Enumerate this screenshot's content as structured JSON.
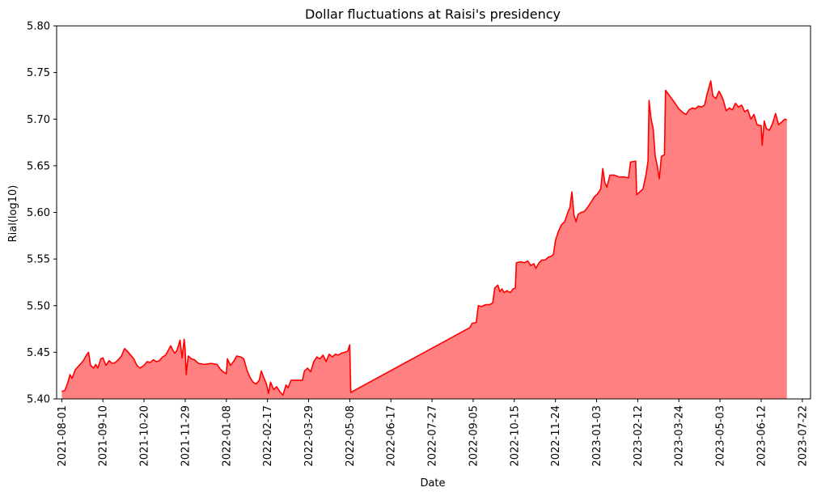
{
  "chart_data": {
    "type": "area",
    "title": "Dollar fluctuations at Raisi's presidency",
    "xlabel": "Date",
    "ylabel": "Rial(log10)",
    "xlim": [
      "2021-07-27",
      "2023-07-30"
    ],
    "ylim": [
      5.4,
      5.8
    ],
    "grid": false,
    "colors": {
      "line": "#ff0000",
      "fill": "#ff8080"
    },
    "x_ticks": [
      "2021-08-01",
      "2021-09-10",
      "2021-10-20",
      "2021-11-29",
      "2022-01-08",
      "2022-02-17",
      "2022-03-29",
      "2022-05-08",
      "2022-06-17",
      "2022-07-27",
      "2022-09-05",
      "2022-10-15",
      "2022-11-24",
      "2023-01-03",
      "2023-02-12",
      "2023-03-24",
      "2023-05-03",
      "2023-06-12",
      "2023-07-22"
    ],
    "y_ticks": [
      "5.40",
      "5.45",
      "5.50",
      "5.55",
      "5.60",
      "5.65",
      "5.70",
      "5.75",
      "5.80"
    ],
    "series": [
      {
        "points": [
          [
            "2021-08-01",
            5.408
          ],
          [
            "2021-08-04",
            5.409
          ],
          [
            "2021-08-07",
            5.418
          ],
          [
            "2021-08-09",
            5.426
          ],
          [
            "2021-08-11",
            5.422
          ],
          [
            "2021-08-14",
            5.431
          ],
          [
            "2021-08-18",
            5.436
          ],
          [
            "2021-08-22",
            5.441
          ],
          [
            "2021-08-25",
            5.447
          ],
          [
            "2021-08-27",
            5.45
          ],
          [
            "2021-08-29",
            5.436
          ],
          [
            "2021-09-01",
            5.433
          ],
          [
            "2021-09-03",
            5.437
          ],
          [
            "2021-09-05",
            5.433
          ],
          [
            "2021-09-08",
            5.443
          ],
          [
            "2021-09-10",
            5.444
          ],
          [
            "2021-09-13",
            5.436
          ],
          [
            "2021-09-16",
            5.441
          ],
          [
            "2021-09-19",
            5.438
          ],
          [
            "2021-09-22",
            5.439
          ],
          [
            "2021-09-25",
            5.442
          ],
          [
            "2021-09-28",
            5.446
          ],
          [
            "2021-10-01",
            5.454
          ],
          [
            "2021-10-03",
            5.452
          ],
          [
            "2021-10-07",
            5.447
          ],
          [
            "2021-10-10",
            5.443
          ],
          [
            "2021-10-13",
            5.436
          ],
          [
            "2021-10-16",
            5.433
          ],
          [
            "2021-10-20",
            5.436
          ],
          [
            "2021-10-23",
            5.44
          ],
          [
            "2021-10-26",
            5.439
          ],
          [
            "2021-10-29",
            5.442
          ],
          [
            "2021-11-01",
            5.44
          ],
          [
            "2021-11-04",
            5.441
          ],
          [
            "2021-11-07",
            5.445
          ],
          [
            "2021-11-10",
            5.447
          ],
          [
            "2021-11-13",
            5.453
          ],
          [
            "2021-11-15",
            5.457
          ],
          [
            "2021-11-17",
            5.452
          ],
          [
            "2021-11-19",
            5.449
          ],
          [
            "2021-11-21",
            5.452
          ],
          [
            "2021-11-24",
            5.463
          ],
          [
            "2021-11-26",
            5.444
          ],
          [
            "2021-11-28",
            5.464
          ],
          [
            "2021-11-29",
            5.452
          ],
          [
            "2021-11-30",
            5.426
          ],
          [
            "2021-12-01",
            5.437
          ],
          [
            "2021-12-02",
            5.446
          ],
          [
            "2021-12-05",
            5.443
          ],
          [
            "2021-12-08",
            5.442
          ],
          [
            "2021-12-12",
            5.438
          ],
          [
            "2021-12-18",
            5.437
          ],
          [
            "2021-12-24",
            5.438
          ],
          [
            "2021-12-30",
            5.437
          ],
          [
            "2022-01-02",
            5.432
          ],
          [
            "2022-01-05",
            5.429
          ],
          [
            "2022-01-08",
            5.427
          ],
          [
            "2022-01-09",
            5.443
          ],
          [
            "2022-01-12",
            5.436
          ],
          [
            "2022-01-15",
            5.44
          ],
          [
            "2022-01-18",
            5.446
          ],
          [
            "2022-01-22",
            5.445
          ],
          [
            "2022-01-25",
            5.443
          ],
          [
            "2022-01-28",
            5.431
          ],
          [
            "2022-01-31",
            5.423
          ],
          [
            "2022-02-03",
            5.418
          ],
          [
            "2022-02-06",
            5.416
          ],
          [
            "2022-02-09",
            5.42
          ],
          [
            "2022-02-11",
            5.43
          ],
          [
            "2022-02-13",
            5.424
          ],
          [
            "2022-02-16",
            5.416
          ],
          [
            "2022-02-18",
            5.406
          ],
          [
            "2022-02-20",
            5.418
          ],
          [
            "2022-02-23",
            5.41
          ],
          [
            "2022-02-26",
            5.413
          ],
          [
            "2022-03-01",
            5.408
          ],
          [
            "2022-03-04",
            5.404
          ],
          [
            "2022-03-07",
            5.415
          ],
          [
            "2022-03-09",
            5.412
          ],
          [
            "2022-03-12",
            5.42
          ],
          [
            "2022-03-17",
            5.42
          ],
          [
            "2022-03-23",
            5.42
          ],
          [
            "2022-03-25",
            5.43
          ],
          [
            "2022-03-28",
            5.433
          ],
          [
            "2022-03-31",
            5.429
          ],
          [
            "2022-04-03",
            5.44
          ],
          [
            "2022-04-06",
            5.445
          ],
          [
            "2022-04-09",
            5.443
          ],
          [
            "2022-04-12",
            5.447
          ],
          [
            "2022-04-15",
            5.44
          ],
          [
            "2022-04-18",
            5.448
          ],
          [
            "2022-04-21",
            5.445
          ],
          [
            "2022-04-24",
            5.448
          ],
          [
            "2022-04-27",
            5.447
          ],
          [
            "2022-04-30",
            5.449
          ],
          [
            "2022-05-03",
            5.45
          ],
          [
            "2022-05-06",
            5.451
          ],
          [
            "2022-05-08",
            5.458
          ],
          [
            "2022-05-09",
            5.407
          ],
          [
            "2022-09-01",
            5.476
          ],
          [
            "2022-09-02",
            5.477
          ],
          [
            "2022-09-04",
            5.481
          ],
          [
            "2022-09-08",
            5.482
          ],
          [
            "2022-09-10",
            5.5
          ],
          [
            "2022-09-13",
            5.499
          ],
          [
            "2022-09-17",
            5.501
          ],
          [
            "2022-09-21",
            5.501
          ],
          [
            "2022-09-24",
            5.503
          ],
          [
            "2022-09-26",
            5.519
          ],
          [
            "2022-09-29",
            5.522
          ],
          [
            "2022-10-01",
            5.515
          ],
          [
            "2022-10-03",
            5.518
          ],
          [
            "2022-10-05",
            5.514
          ],
          [
            "2022-10-08",
            5.516
          ],
          [
            "2022-10-11",
            5.514
          ],
          [
            "2022-10-14",
            5.518
          ],
          [
            "2022-10-16",
            5.519
          ],
          [
            "2022-10-17",
            5.546
          ],
          [
            "2022-10-21",
            5.547
          ],
          [
            "2022-10-25",
            5.546
          ],
          [
            "2022-10-28",
            5.548
          ],
          [
            "2022-10-31",
            5.543
          ],
          [
            "2022-11-03",
            5.545
          ],
          [
            "2022-11-05",
            5.54
          ],
          [
            "2022-11-08",
            5.546
          ],
          [
            "2022-11-11",
            5.549
          ],
          [
            "2022-11-14",
            5.549
          ],
          [
            "2022-11-17",
            5.552
          ],
          [
            "2022-11-20",
            5.553
          ],
          [
            "2022-11-22",
            5.555
          ],
          [
            "2022-11-24",
            5.57
          ],
          [
            "2022-11-27",
            5.58
          ],
          [
            "2022-11-30",
            5.587
          ],
          [
            "2022-12-03",
            5.59
          ],
          [
            "2022-12-06",
            5.6
          ],
          [
            "2022-12-08",
            5.605
          ],
          [
            "2022-12-10",
            5.622
          ],
          [
            "2022-12-12",
            5.597
          ],
          [
            "2022-12-14",
            5.59
          ],
          [
            "2022-12-16",
            5.598
          ],
          [
            "2022-12-19",
            5.6
          ],
          [
            "2022-12-22",
            5.601
          ],
          [
            "2022-12-25",
            5.605
          ],
          [
            "2022-12-28",
            5.61
          ],
          [
            "2023-01-01",
            5.617
          ],
          [
            "2023-01-04",
            5.62
          ],
          [
            "2023-01-07",
            5.625
          ],
          [
            "2023-01-09",
            5.647
          ],
          [
            "2023-01-11",
            5.632
          ],
          [
            "2023-01-13",
            5.627
          ],
          [
            "2023-01-16",
            5.64
          ],
          [
            "2023-01-20",
            5.64
          ],
          [
            "2023-01-25",
            5.638
          ],
          [
            "2023-01-30",
            5.638
          ],
          [
            "2023-02-03",
            5.637
          ],
          [
            "2023-02-05",
            5.654
          ],
          [
            "2023-02-10",
            5.655
          ],
          [
            "2023-02-11",
            5.619
          ],
          [
            "2023-02-14",
            5.622
          ],
          [
            "2023-02-17",
            5.625
          ],
          [
            "2023-02-20",
            5.64
          ],
          [
            "2023-02-22",
            5.655
          ],
          [
            "2023-02-23",
            5.72
          ],
          [
            "2023-02-25",
            5.7
          ],
          [
            "2023-02-27",
            5.69
          ],
          [
            "2023-03-01",
            5.66
          ],
          [
            "2023-03-03",
            5.65
          ],
          [
            "2023-03-05",
            5.636
          ],
          [
            "2023-03-07",
            5.66
          ],
          [
            "2023-03-10",
            5.662
          ],
          [
            "2023-03-11",
            5.731
          ],
          [
            "2023-03-15",
            5.725
          ],
          [
            "2023-03-19",
            5.719
          ],
          [
            "2023-03-24",
            5.711
          ],
          [
            "2023-03-26",
            5.709
          ],
          [
            "2023-03-28",
            5.707
          ],
          [
            "2023-03-31",
            5.705
          ],
          [
            "2023-04-03",
            5.71
          ],
          [
            "2023-04-06",
            5.712
          ],
          [
            "2023-04-09",
            5.711
          ],
          [
            "2023-04-12",
            5.714
          ],
          [
            "2023-04-15",
            5.713
          ],
          [
            "2023-04-18",
            5.715
          ],
          [
            "2023-04-20",
            5.725
          ],
          [
            "2023-04-22",
            5.733
          ],
          [
            "2023-04-24",
            5.741
          ],
          [
            "2023-04-26",
            5.725
          ],
          [
            "2023-04-29",
            5.722
          ],
          [
            "2023-05-02",
            5.73
          ],
          [
            "2023-05-04",
            5.726
          ],
          [
            "2023-05-06",
            5.721
          ],
          [
            "2023-05-09",
            5.709
          ],
          [
            "2023-05-12",
            5.712
          ],
          [
            "2023-05-15",
            5.71
          ],
          [
            "2023-05-18",
            5.717
          ],
          [
            "2023-05-21",
            5.713
          ],
          [
            "2023-05-24",
            5.715
          ],
          [
            "2023-05-27",
            5.708
          ],
          [
            "2023-05-30",
            5.71
          ],
          [
            "2023-06-02",
            5.7
          ],
          [
            "2023-06-05",
            5.705
          ],
          [
            "2023-06-08",
            5.694
          ],
          [
            "2023-06-12",
            5.693
          ],
          [
            "2023-06-13",
            5.672
          ],
          [
            "2023-06-15",
            5.698
          ],
          [
            "2023-06-17",
            5.69
          ],
          [
            "2023-06-20",
            5.688
          ],
          [
            "2023-06-23",
            5.695
          ],
          [
            "2023-06-26",
            5.706
          ],
          [
            "2023-06-29",
            5.694
          ],
          [
            "2023-07-02",
            5.697
          ],
          [
            "2023-07-05",
            5.7
          ],
          [
            "2023-07-07",
            5.699
          ]
        ]
      }
    ]
  }
}
